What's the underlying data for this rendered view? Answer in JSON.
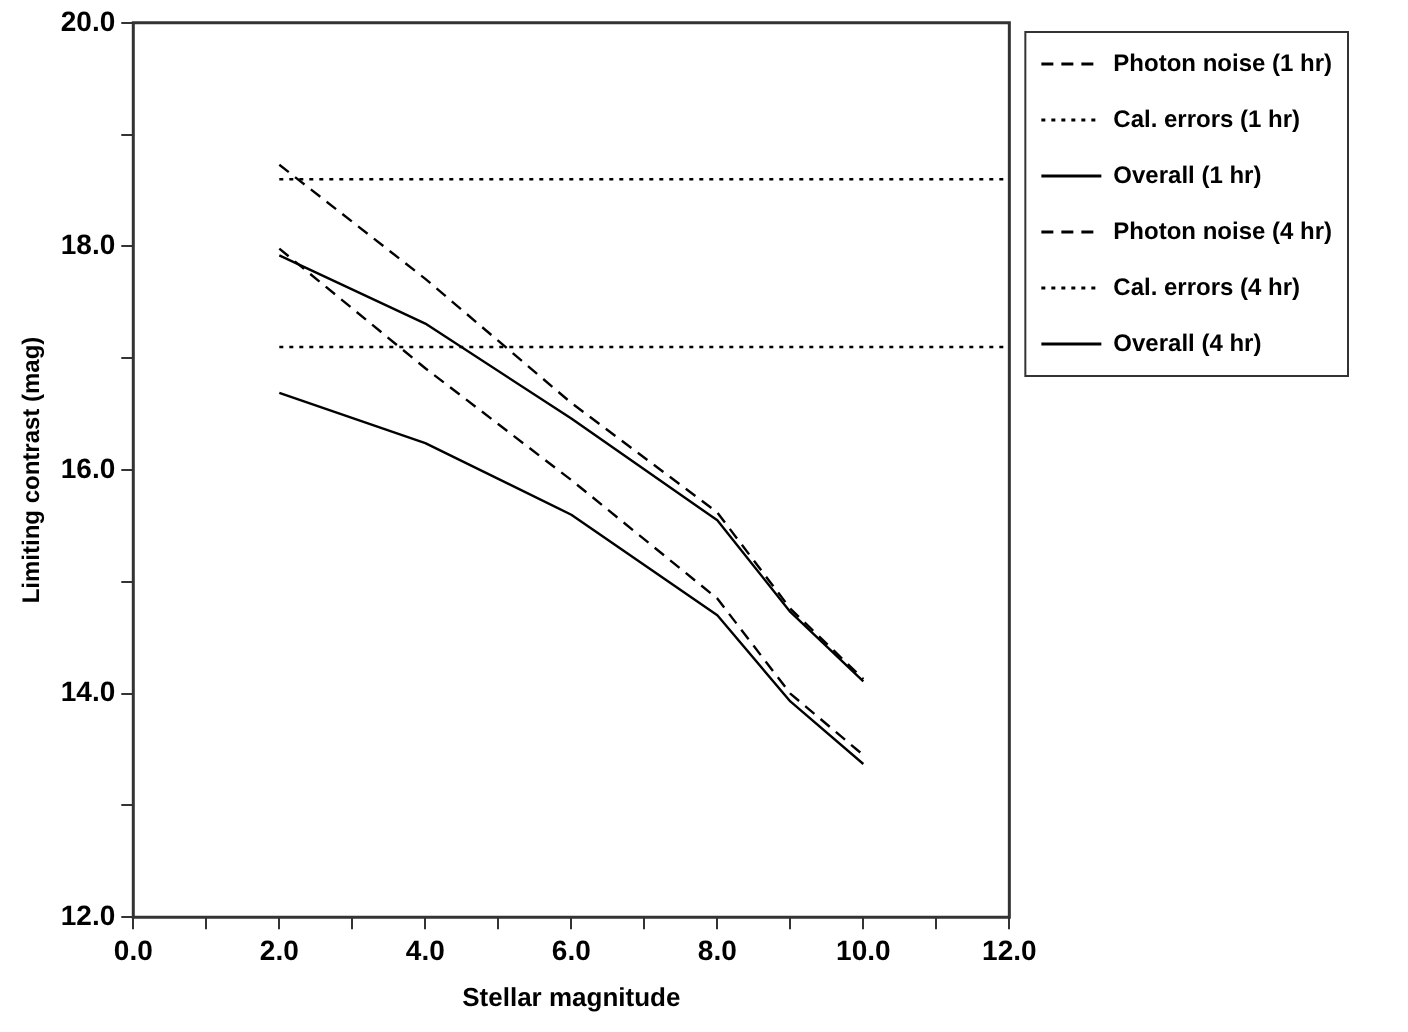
{
  "chart_data": {
    "type": "line",
    "xlabel": "Stellar magnitude",
    "ylabel": "Limiting contrast (mag)",
    "xlim": [
      0,
      12
    ],
    "ylim": [
      12,
      20
    ],
    "xticks": [
      {
        "value": 0,
        "label": "0.0"
      },
      {
        "value": 1,
        "label": null
      },
      {
        "value": 2,
        "label": "2.0"
      },
      {
        "value": 3,
        "label": null
      },
      {
        "value": 4,
        "label": "4.0"
      },
      {
        "value": 5,
        "label": null
      },
      {
        "value": 6,
        "label": "6.0"
      },
      {
        "value": 7,
        "label": null
      },
      {
        "value": 8,
        "label": "8.0"
      },
      {
        "value": 9,
        "label": null
      },
      {
        "value": 10,
        "label": "10.0"
      },
      {
        "value": 11,
        "label": null
      },
      {
        "value": 12,
        "label": "12.0"
      }
    ],
    "yticks": [
      {
        "value": 12,
        "label": "12.0"
      },
      {
        "value": 13,
        "label": null
      },
      {
        "value": 14,
        "label": "14.0"
      },
      {
        "value": 15,
        "label": null
      },
      {
        "value": 16,
        "label": "16.0"
      },
      {
        "value": 17,
        "label": null
      },
      {
        "value": 18,
        "label": "18.0"
      },
      {
        "value": 19,
        "label": null
      },
      {
        "value": 20,
        "label": "20.0"
      }
    ],
    "grid": false,
    "legend": "right",
    "marker": "none",
    "series": [
      {
        "name": "Photon noise (1 hr)",
        "color": "#000000",
        "line_style": "dashed",
        "x": [
          2,
          4,
          6,
          8,
          9,
          10
        ],
        "values": [
          18.73,
          17.71,
          16.6,
          15.62,
          14.76,
          14.13
        ]
      },
      {
        "name": "Cal. errors (1 hr)",
        "color": "#000000",
        "line_style": "dotted",
        "x": [
          2,
          12
        ],
        "values": [
          18.6,
          18.6
        ]
      },
      {
        "name": "Overall (1 hr)",
        "color": "#000000",
        "line_style": "solid",
        "x": [
          2,
          4,
          6,
          8,
          9,
          10
        ],
        "values": [
          17.92,
          17.31,
          16.46,
          15.55,
          14.73,
          14.11
        ]
      },
      {
        "name": "Photon noise (4 hr)",
        "color": "#000000",
        "line_style": "dashed",
        "x": [
          2,
          4,
          6,
          8,
          9,
          10
        ],
        "values": [
          17.98,
          16.91,
          15.91,
          14.85,
          14.0,
          13.45
        ]
      },
      {
        "name": "Cal. errors (4 hr)",
        "color": "#000000",
        "line_style": "dotted",
        "x": [
          2,
          12
        ],
        "values": [
          17.1,
          17.1
        ]
      },
      {
        "name": "Overall (4 hr)",
        "color": "#000000",
        "line_style": "solid",
        "x": [
          2,
          4,
          6,
          8,
          9,
          10
        ],
        "values": [
          16.69,
          16.24,
          15.6,
          14.7,
          13.93,
          13.37
        ]
      }
    ]
  }
}
